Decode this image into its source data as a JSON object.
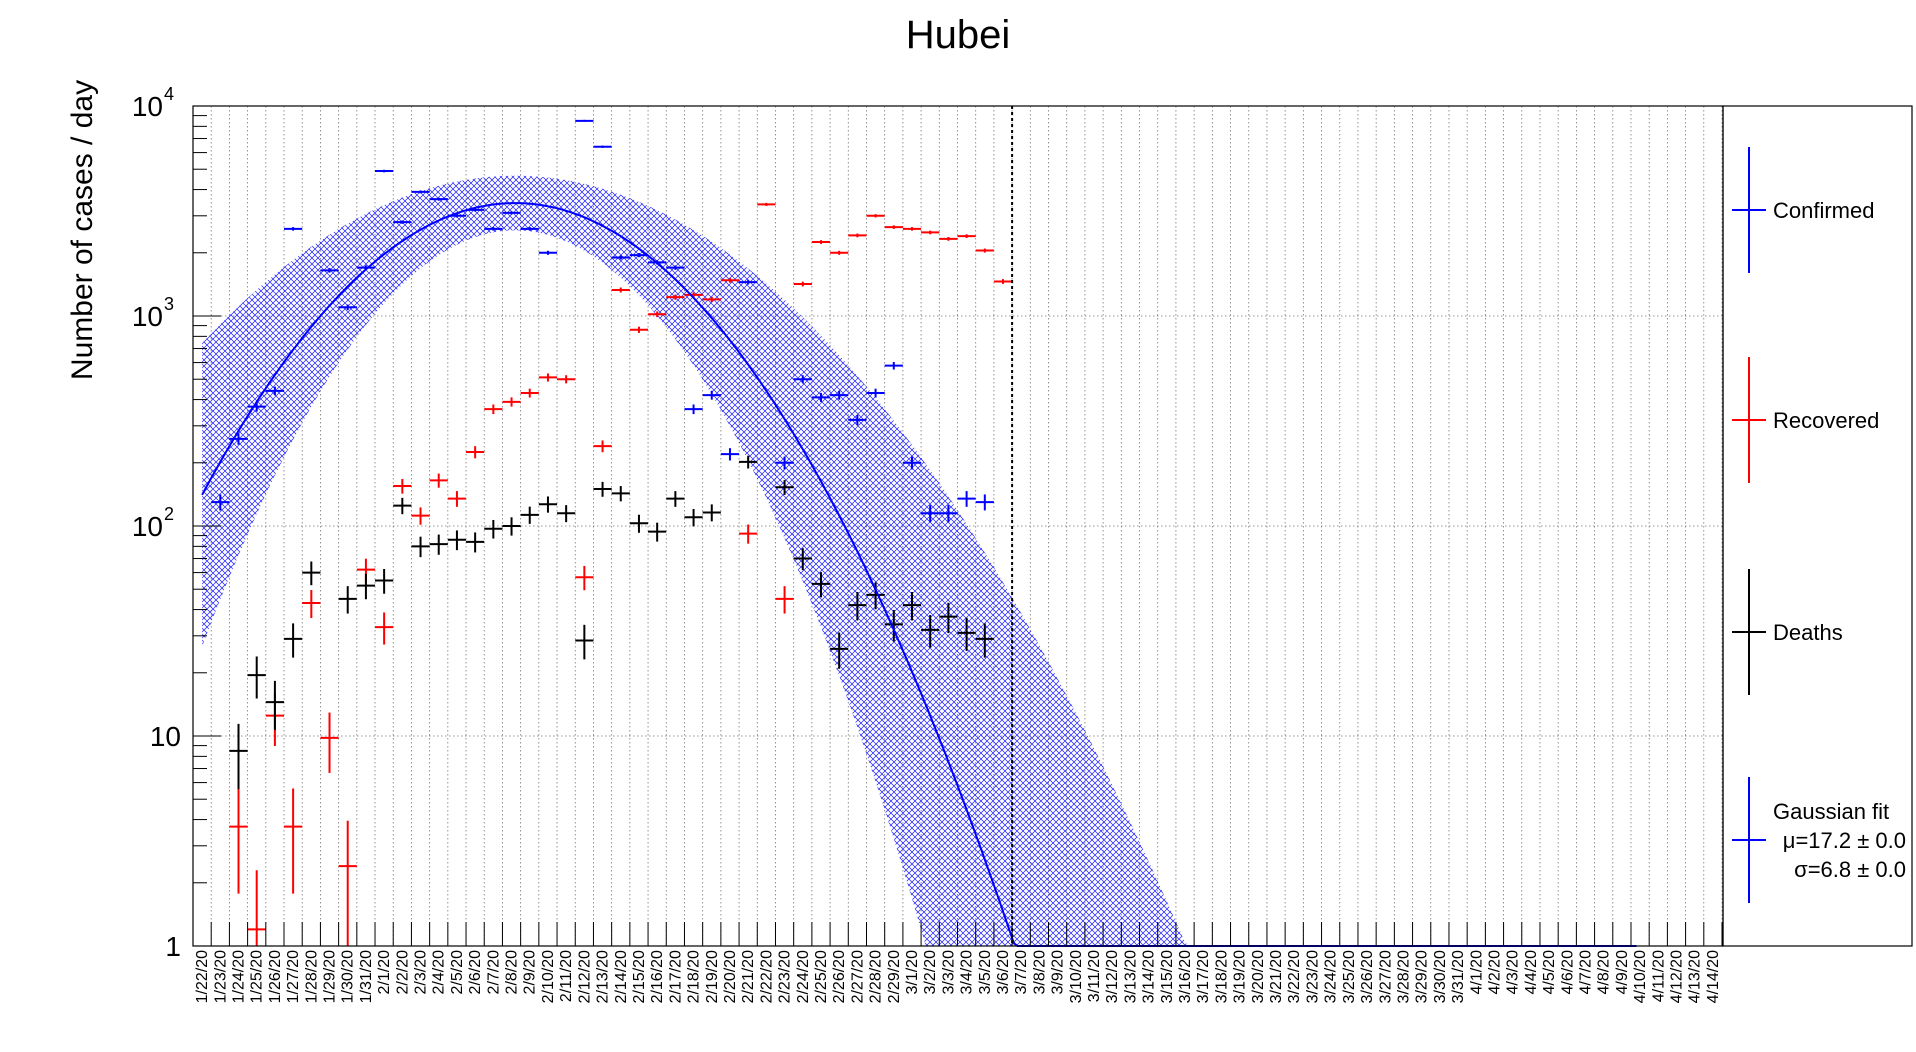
{
  "chart_data": {
    "type": "scatter",
    "title": "Hubei",
    "ylabel": "Number of cases / day",
    "xlabel": "",
    "y_scale": "log",
    "ylim": [
      1,
      10000
    ],
    "ytick_labels": [
      {
        "value": 1,
        "base": "1",
        "exp": ""
      },
      {
        "value": 10,
        "base": "10",
        "exp": ""
      },
      {
        "value": 100,
        "base": "10",
        "exp": "2"
      },
      {
        "value": 1000,
        "base": "10",
        "exp": "3"
      },
      {
        "value": 10000,
        "base": "10",
        "exp": "4"
      }
    ],
    "grid": true,
    "legend_position": "right",
    "dates": [
      "1/22/20",
      "1/23/20",
      "1/24/20",
      "1/25/20",
      "1/26/20",
      "1/27/20",
      "1/28/20",
      "1/29/20",
      "1/30/20",
      "1/31/20",
      "2/1/20",
      "2/2/20",
      "2/3/20",
      "2/4/20",
      "2/5/20",
      "2/6/20",
      "2/7/20",
      "2/8/20",
      "2/9/20",
      "2/10/20",
      "2/11/20",
      "2/12/20",
      "2/13/20",
      "2/14/20",
      "2/15/20",
      "2/16/20",
      "2/17/20",
      "2/18/20",
      "2/19/20",
      "2/20/20",
      "2/21/20",
      "2/22/20",
      "2/23/20",
      "2/24/20",
      "2/25/20",
      "2/26/20",
      "2/27/20",
      "2/28/20",
      "2/29/20",
      "3/1/20",
      "3/2/20",
      "3/3/20",
      "3/4/20",
      "3/5/20",
      "3/6/20",
      "3/7/20",
      "3/8/20",
      "3/9/20",
      "3/10/20",
      "3/11/20",
      "3/12/20",
      "3/13/20",
      "3/14/20",
      "3/15/20",
      "3/16/20",
      "3/17/20",
      "3/18/20",
      "3/19/20",
      "3/20/20",
      "3/21/20",
      "3/22/20",
      "3/23/20",
      "3/24/20",
      "3/25/20",
      "3/26/20",
      "3/27/20",
      "3/28/20",
      "3/29/20",
      "3/30/20",
      "3/31/20",
      "4/1/20",
      "4/2/20",
      "4/3/20",
      "4/4/20",
      "4/5/20",
      "4/6/20",
      "4/7/20",
      "4/8/20",
      "4/9/20",
      "4/10/20",
      "4/11/20",
      "4/12/20",
      "4/13/20",
      "4/14/20"
    ],
    "vertical_marker_date": "3/6/20",
    "series": [
      {
        "name": "Confirmed",
        "color": "#0000ff",
        "start_index": 1,
        "values": [
          130,
          260,
          370,
          440,
          2600,
          null,
          1650,
          1100,
          1700,
          4900,
          2800,
          3900,
          3600,
          3000,
          3200,
          2600,
          3100,
          2600,
          2000,
          null,
          8500,
          6400,
          1900,
          1950,
          1800,
          1700,
          360,
          420,
          220,
          1450,
          null,
          200,
          500,
          410,
          420,
          320,
          430,
          580,
          200,
          115,
          115,
          135,
          130
        ]
      },
      {
        "name": "Recovered",
        "color": "#ff0000",
        "start_index": 2,
        "values": [
          3.7,
          1.2,
          12.5,
          3.7,
          43,
          9.8,
          2.4,
          62,
          33,
          155,
          112,
          165,
          135,
          225,
          360,
          390,
          430,
          510,
          500,
          57,
          240,
          1330,
          860,
          1020,
          1230,
          1260,
          1200,
          1480,
          92,
          3400,
          45,
          1420,
          2250,
          2000,
          2420,
          3000,
          2650,
          2600,
          2500,
          2330,
          2400,
          2050,
          1460
        ]
      },
      {
        "name": "Deaths",
        "color": "#000000",
        "start_index": 2,
        "values": [
          8.5,
          19.5,
          14.5,
          29,
          60,
          null,
          45,
          52,
          55,
          125,
          80,
          82,
          86,
          84,
          97,
          100,
          113,
          127,
          115,
          28.5,
          150,
          143,
          103,
          94,
          135,
          110,
          116,
          null,
          202,
          null,
          153,
          70,
          53,
          26,
          42,
          47,
          34,
          42,
          32,
          37,
          31,
          29
        ]
      }
    ],
    "fit": {
      "name": "Gaussian fit",
      "mu_label": "μ=17.2 ± 0.0",
      "sigma_label": "σ=6.8 ± 0.0",
      "mu": 17.2,
      "sigma": 6.8,
      "amplitude": 3450,
      "color": "#0000ff"
    }
  }
}
